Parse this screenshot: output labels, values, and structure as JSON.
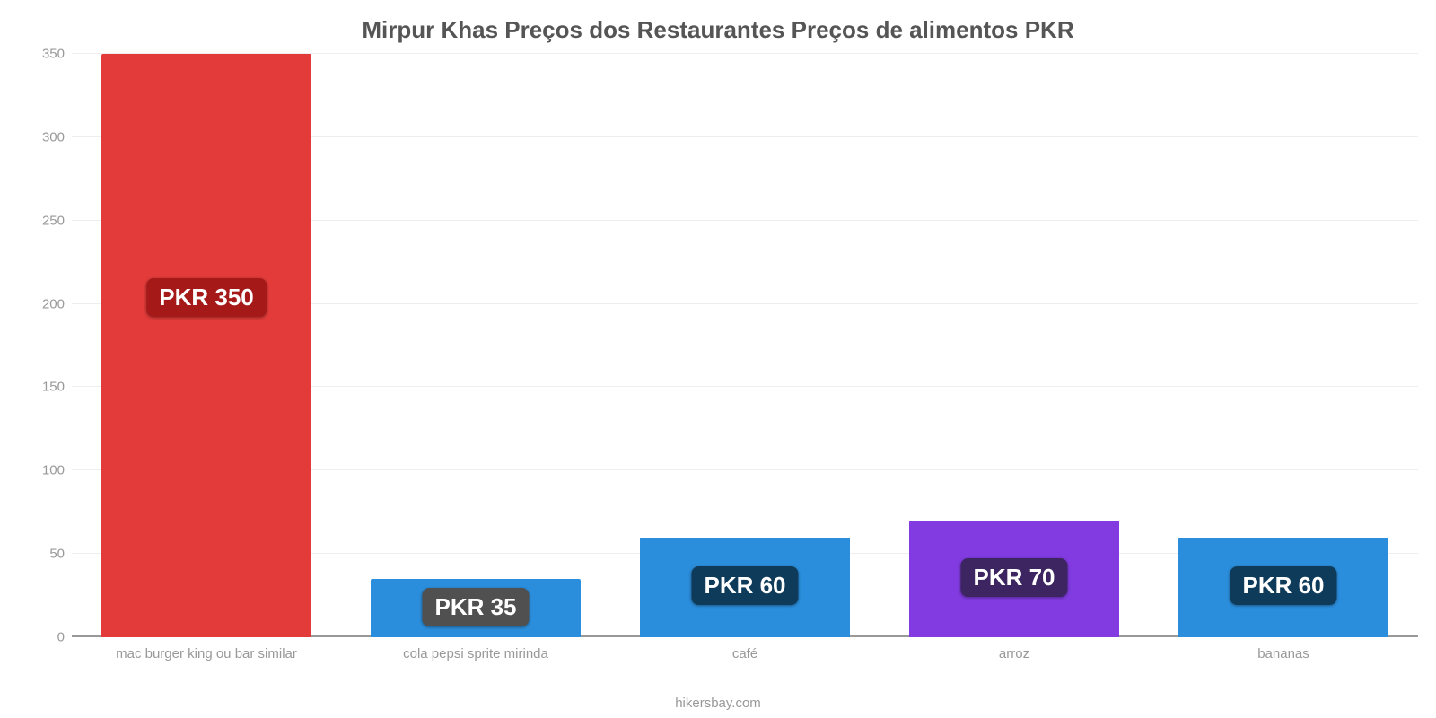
{
  "chart": {
    "type": "bar",
    "title": "Mirpur Khas Preços dos Restaurantes Preços de alimentos PKR",
    "title_fontsize": 26,
    "title_color": "#555555",
    "background_color": "#ffffff",
    "grid_color": "#eeeeee",
    "baseline_color": "#999999",
    "tick_label_color": "#999999",
    "tick_label_fontsize": 15,
    "footer": "hikersbay.com",
    "ylim": [
      0,
      350
    ],
    "ytick_step": 50,
    "yticks": [
      0,
      50,
      100,
      150,
      200,
      250,
      300,
      350
    ],
    "bar_width_pct": 78,
    "categories": [
      "mac burger king ou bar similar",
      "cola pepsi sprite mirinda",
      "café",
      "arroz",
      "bananas"
    ],
    "values": [
      350,
      35,
      60,
      70,
      60
    ],
    "value_labels": [
      "PKR 350",
      "PKR 35",
      "PKR 60",
      "PKR 70",
      "PKR 60"
    ],
    "bar_colors": [
      "#e23b3a",
      "#2b8edc",
      "#2b8edc",
      "#813be0",
      "#2b8edc"
    ],
    "badge_colors": [
      "#a51919",
      "#505050",
      "#0f3b5a",
      "#3c2560",
      "#0f3b5a"
    ],
    "badge_text_color": "#ffffff",
    "badge_fontsize": 26
  }
}
